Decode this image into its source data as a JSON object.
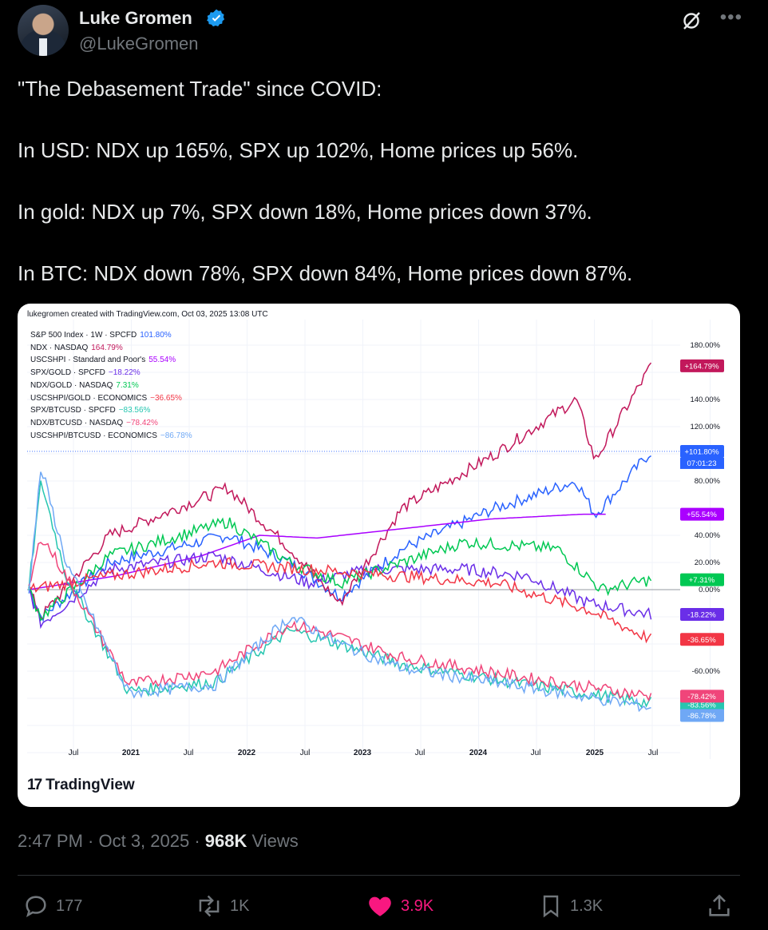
{
  "author": {
    "name": "Luke Gromen",
    "handle": "@LukeGromen"
  },
  "tweet": {
    "lines": [
      "\"The Debasement Trade\" since COVID:",
      "In USD: NDX up 165%, SPX up 102%, Home prices up 56%.",
      "In gold: NDX up 7%, SPX down 18%, Home prices down 37%.",
      "In BTC: NDX down 78%, SPX down 84%, Home prices down 87%."
    ]
  },
  "card": {
    "credit": "lukegromen created with TradingView.com, Oct 03, 2025 13:08 UTC",
    "logo_text": "TradingView"
  },
  "chart_data": {
    "type": "line",
    "x_ticks": [
      "Jul",
      "2021",
      "Jul",
      "2022",
      "Jul",
      "2023",
      "Jul",
      "2024",
      "Jul",
      "2025",
      "Jul"
    ],
    "y_ticks": [
      "180.00%",
      "140.00%",
      "120.00%",
      "80.00%",
      "40.00%",
      "20.00%",
      "0.00%",
      "-60.00%"
    ],
    "countdown": "07:01:23",
    "series": [
      {
        "legend": "S&P 500 Index · 1W · SPCFD",
        "value_label": "101.80%",
        "tag": "+101.80%",
        "color": "#2962ff",
        "final": 101.8
      },
      {
        "legend": "NDX · NASDAQ",
        "value_label": "164.79%",
        "tag": "+164.79%",
        "color": "#c2185b",
        "final": 164.79
      },
      {
        "legend": "USCSHPI · Standard and Poor's",
        "value_label": "55.54%",
        "tag": "+55.54%",
        "color": "#aa00ff",
        "final": 55.54
      },
      {
        "legend": "SPX/GOLD · SPCFD",
        "value_label": "−18.22%",
        "tag": "-18.22%",
        "color": "#6a2ee8",
        "final": -18.22
      },
      {
        "legend": "NDX/GOLD · NASDAQ",
        "value_label": "7.31%",
        "tag": "+7.31%",
        "color": "#00c853",
        "final": 7.31
      },
      {
        "legend": "USCSHPI/GOLD · ECONOMICS",
        "value_label": "−36.65%",
        "tag": "-36.65%",
        "color": "#f23645",
        "final": -36.65
      },
      {
        "legend": "SPX/BTCUSD · SPCFD",
        "value_label": "−83.56%",
        "tag": "-83.56%",
        "color": "#26c6b0",
        "final": -83.56
      },
      {
        "legend": "NDX/BTCUSD · NASDAQ",
        "value_label": "−78.42%",
        "tag": "-78.42%",
        "color": "#f0457a",
        "final": -78.42
      },
      {
        "legend": "USCSHPI/BTCUSD · ECONOMICS",
        "value_label": "−86.78%",
        "tag": "-86.78%",
        "color": "#6fa8f5",
        "final": -86.78
      }
    ]
  },
  "meta": {
    "time": "2:47 PM · Oct 3, 2025 · ",
    "views_count": "968K",
    "views_label": " Views"
  },
  "actions": {
    "replies": "177",
    "reposts": "1K",
    "likes": "3.9K",
    "bookmarks": "1.3K"
  }
}
